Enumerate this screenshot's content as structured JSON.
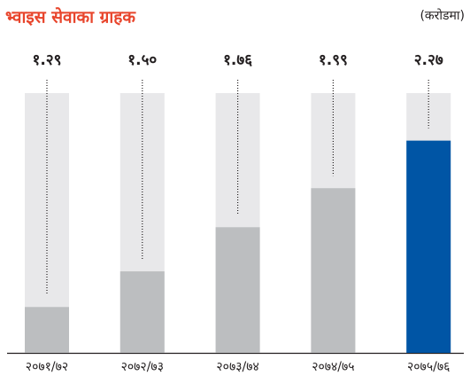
{
  "chart_data": {
    "type": "bar",
    "title": "भ्वाइस सेवाका ग्राहक",
    "subtitle": "(करोडमा)",
    "categories": [
      "२०७१/७२",
      "२०७२/७३",
      "२०७३/७४",
      "२०७४/७५",
      "२०७५/७६"
    ],
    "values": [
      1.29,
      1.5,
      1.76,
      1.99,
      2.27
    ],
    "value_labels": [
      "१.२९",
      "१.५०",
      "१.७६",
      "१.९९",
      "२.२७"
    ],
    "colors": [
      "#bcbec0",
      "#bcbec0",
      "#bcbec0",
      "#bcbec0",
      "#0055a5"
    ],
    "track_color": "#e8e8ea",
    "ylim": [
      1.02,
      2.55
    ]
  }
}
